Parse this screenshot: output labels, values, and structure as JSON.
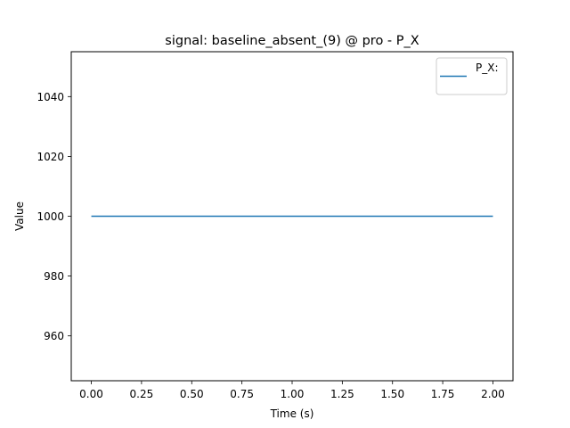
{
  "chart_data": {
    "type": "line",
    "title": "signal: baseline_absent_(9) @ pro - P_X",
    "xlabel": "Time (s)",
    "ylabel": "Value",
    "xlim": [
      -0.1,
      2.1
    ],
    "ylim": [
      945,
      1055
    ],
    "x_ticks": [
      0.0,
      0.25,
      0.5,
      0.75,
      1.0,
      1.25,
      1.5,
      1.75,
      2.0
    ],
    "x_tick_labels": [
      "0.00",
      "0.25",
      "0.50",
      "0.75",
      "1.00",
      "1.25",
      "1.50",
      "1.75",
      "2.00"
    ],
    "y_ticks": [
      960,
      980,
      1000,
      1020,
      1040
    ],
    "y_tick_labels": [
      "960",
      "980",
      "1000",
      "1020",
      "1040"
    ],
    "grid": false,
    "legend_position": "upper-right",
    "series": [
      {
        "name": "P_X:",
        "color": "#1f77b4",
        "x": [
          0.0,
          2.0
        ],
        "y": [
          1000,
          1000
        ]
      }
    ]
  }
}
